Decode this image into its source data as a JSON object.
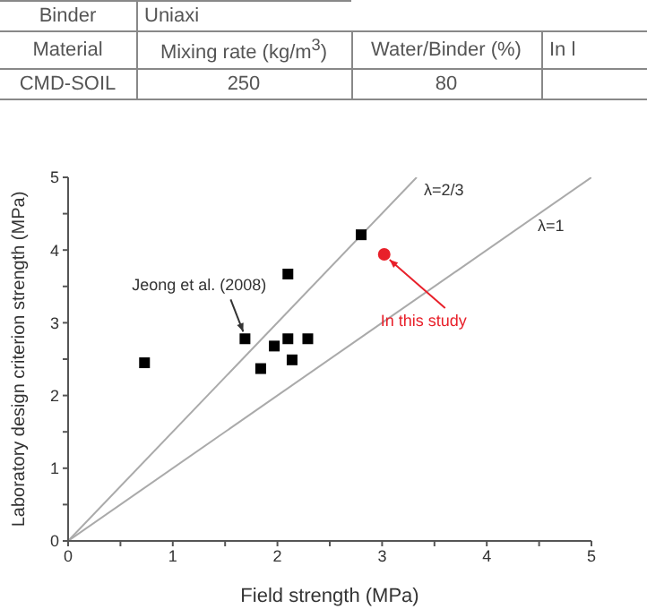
{
  "chart_data": {
    "type": "scatter",
    "xlabel": "Field strength (MPa)",
    "ylabel": "Laboratory design criterion strength (MPa)",
    "xlim": [
      0,
      5
    ],
    "ylim": [
      0,
      5
    ],
    "xticks": [
      0,
      {
        "value": 0.5,
        "label": null
      },
      1,
      {
        "value": 1.5,
        "label": null
      },
      2,
      {
        "value": 2.5,
        "label": null
      },
      3,
      {
        "value": 3.5,
        "label": null
      },
      4,
      {
        "value": 4.5,
        "label": null
      },
      5
    ],
    "yticks": [
      0,
      {
        "value": 0.5,
        "label": null
      },
      1,
      {
        "value": 1.5,
        "label": null
      },
      2,
      {
        "value": 2.5,
        "label": null
      },
      3,
      {
        "value": 3.5,
        "label": null
      },
      4,
      {
        "value": 4.5,
        "label": null
      },
      5
    ],
    "series": [
      {
        "type": "line",
        "name": "λ=2/3",
        "color": "#aaaaaa",
        "x": [
          0,
          3.33
        ],
        "values": [
          0,
          5
        ],
        "marker": "none",
        "line_style": "solid"
      },
      {
        "type": "line",
        "name": "λ=1",
        "color": "#aaaaaa",
        "x": [
          0,
          5
        ],
        "values": [
          0,
          5
        ],
        "marker": "none",
        "line_style": "solid"
      },
      {
        "color": "#000000",
        "marker": "square",
        "x": [
          0.73,
          1.69,
          1.84,
          1.97,
          2.1,
          2.14,
          2.29,
          2.1,
          2.8
        ],
        "values": [
          2.45,
          2.78,
          2.37,
          2.68,
          2.78,
          2.49,
          2.78,
          3.67,
          4.21
        ]
      },
      {
        "color": "#e8202a",
        "marker": "circle",
        "x": [
          3.02
        ],
        "values": [
          3.94
        ]
      }
    ],
    "annotations": [
      "Binder",
      "Uniaxi",
      "Material",
      "Mixing rate (kg/m$^{3}$)",
      "Water/Binder (%)",
      "In l",
      "CMD-SOIL",
      "250",
      "80",
      {
        "text": "Jeong et al. (2008)",
        "x": 1.69,
        "y": 2.78
      },
      {
        "text": "In this study",
        "x": 3.02,
        "y": 3.94
      }
    ]
  }
}
